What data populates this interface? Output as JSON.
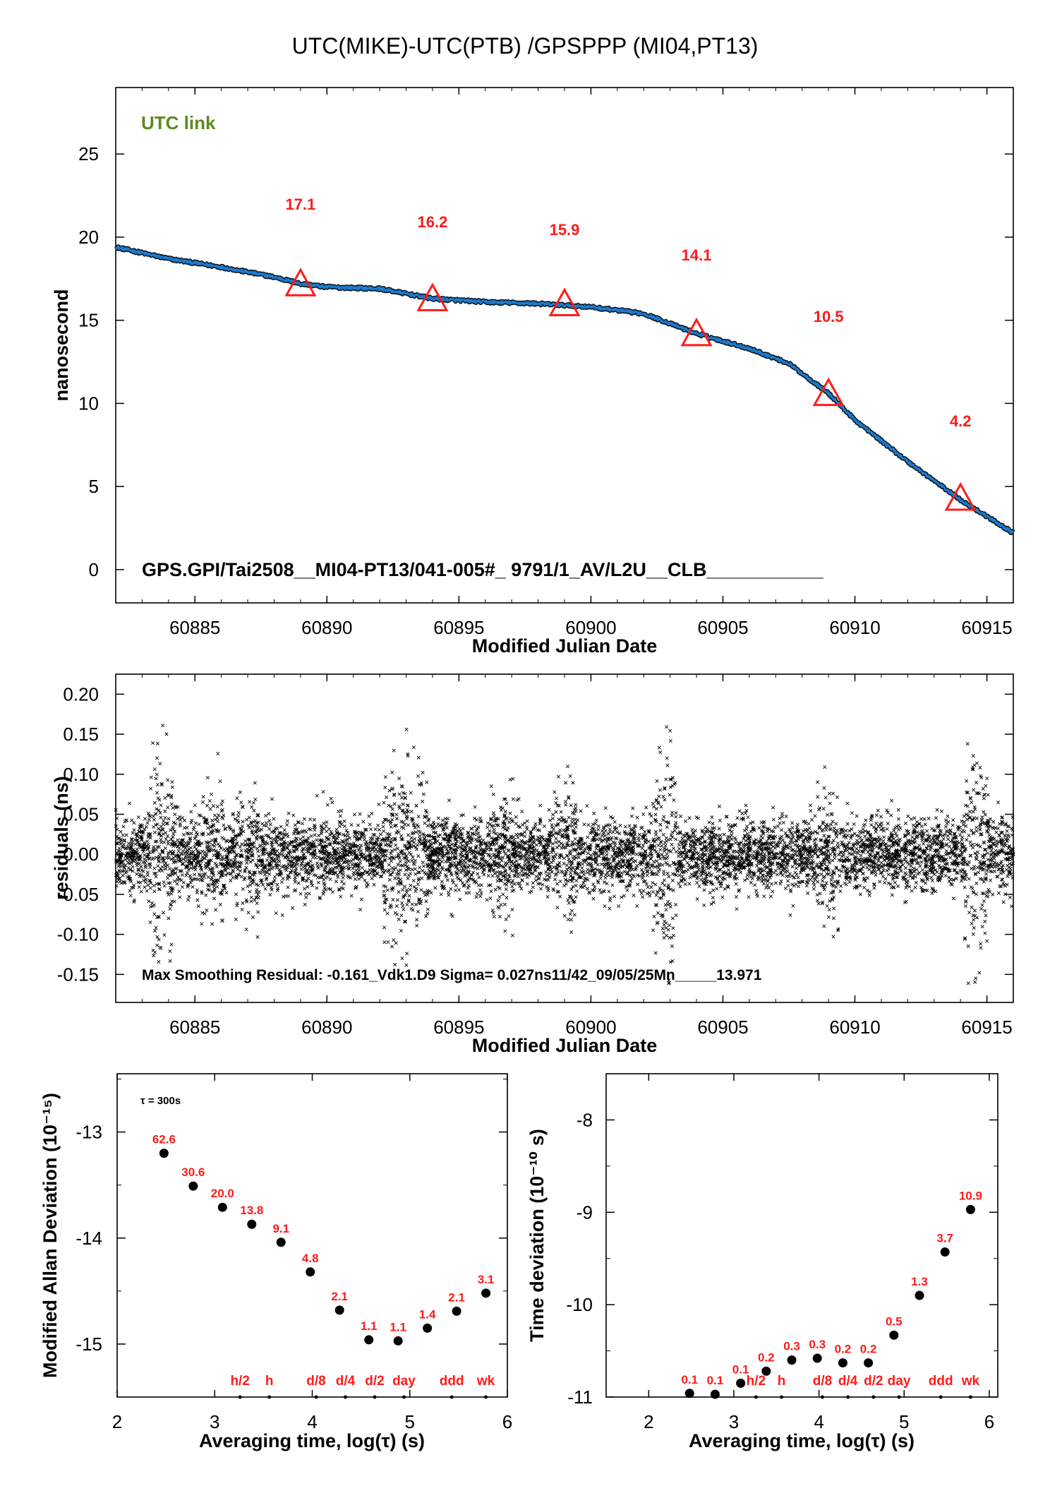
{
  "title": "UTC(MIKE)-UTC(PTB)  /GPSPPP  (MI04,PT13)",
  "colors": {
    "line": "#1f7ac9",
    "markers": "#ff1a1a",
    "link_label": "#5e8a1e"
  },
  "chart_data": [
    {
      "id": "time_series",
      "type": "line",
      "xlabel": "Modified Julian Date",
      "ylabel": "nanosecond",
      "xlim": [
        60882,
        60916
      ],
      "ylim": [
        -2,
        29
      ],
      "xticks": [
        60885,
        60890,
        60895,
        60900,
        60905,
        60910,
        60915
      ],
      "yticks": [
        0,
        5,
        10,
        15,
        20,
        25
      ],
      "corner_label": "UTC link",
      "info_text": "GPS.GPI/Tai2508__MI04-PT13/041-005#_  9791/1_AV/L2U__CLB___________",
      "series": [
        {
          "x": [
            60882,
            60884,
            60886,
            60888,
            60889,
            60890,
            60892,
            60894,
            60896,
            60898,
            60900,
            60902,
            60904,
            60906,
            60907.5,
            60909,
            60910,
            60912,
            60914,
            60916
          ],
          "y": [
            19.4,
            18.7,
            18.2,
            17.6,
            17.2,
            17.0,
            16.9,
            16.3,
            16.1,
            16.0,
            15.8,
            15.4,
            14.2,
            13.3,
            12.4,
            10.6,
            9.0,
            6.5,
            4.2,
            2.2
          ]
        }
      ],
      "markers": [
        {
          "x": 60889,
          "y": 17.1,
          "label": "17.1"
        },
        {
          "x": 60894,
          "y": 16.2,
          "label": "16.2"
        },
        {
          "x": 60899,
          "y": 15.9,
          "label": "15.9"
        },
        {
          "x": 60904,
          "y": 14.1,
          "label": "14.1"
        },
        {
          "x": 60909,
          "y": 10.5,
          "label": "10.5"
        },
        {
          "x": 60914,
          "y": 4.2,
          "label": "4.2"
        }
      ]
    },
    {
      "id": "residuals",
      "type": "scatter",
      "xlabel": "Modified Julian Date",
      "ylabel": "residuals (ns)",
      "xlim": [
        60882,
        60916
      ],
      "ylim": [
        -0.185,
        0.225
      ],
      "xticks": [
        60885,
        60890,
        60895,
        60900,
        60905,
        60910,
        60915
      ],
      "yticks": [
        "0.20",
        "0.15",
        "0.10",
        "0.05",
        "0.00",
        "-0.05",
        "-0.10",
        "-0.15"
      ],
      "info_text": "Max Smoothing Residual: -0.161_Vdk1.D9  Sigma= 0.027ns11/42_09/05/25Mn_____13.971",
      "sigma": 0.027,
      "max_abs_residual": 0.161
    },
    {
      "id": "mdev",
      "type": "scatter",
      "xlabel": "Averaging time, log(τ) (s)",
      "ylabel": "Modified Allan Deviation (10⁻¹⁵)",
      "xlim": [
        2,
        6
      ],
      "ylim": [
        -15.5,
        -12.45
      ],
      "xticks": [
        2,
        3,
        4,
        5,
        6
      ],
      "yticks": [
        -13,
        -14,
        -15
      ],
      "tau_note": "τ = 300s",
      "points": [
        {
          "x": 2.48,
          "y": -13.2,
          "label": "62.6"
        },
        {
          "x": 2.78,
          "y": -13.51,
          "label": "30.6"
        },
        {
          "x": 3.08,
          "y": -13.71,
          "label": "20.0"
        },
        {
          "x": 3.38,
          "y": -13.87,
          "label": "13.8"
        },
        {
          "x": 3.68,
          "y": -14.04,
          "label": "9.1"
        },
        {
          "x": 3.98,
          "y": -14.32,
          "label": "4.8"
        },
        {
          "x": 4.28,
          "y": -14.68,
          "label": "2.1"
        },
        {
          "x": 4.58,
          "y": -14.96,
          "label": "1.1"
        },
        {
          "x": 4.88,
          "y": -14.97,
          "label": "1.1"
        },
        {
          "x": 5.18,
          "y": -14.85,
          "label": "1.4"
        },
        {
          "x": 5.48,
          "y": -14.69,
          "label": "2.1"
        },
        {
          "x": 5.78,
          "y": -14.52,
          "label": "3.1"
        }
      ],
      "time_marks": [
        {
          "x": 3.26,
          "label": "h/2"
        },
        {
          "x": 3.56,
          "label": "h"
        },
        {
          "x": 4.04,
          "label": "d/8"
        },
        {
          "x": 4.34,
          "label": "d/4"
        },
        {
          "x": 4.64,
          "label": "d/2"
        },
        {
          "x": 4.94,
          "label": "day"
        },
        {
          "x": 5.43,
          "label": "ddd"
        },
        {
          "x": 5.78,
          "label": "wk"
        }
      ]
    },
    {
      "id": "tdev",
      "type": "scatter",
      "xlabel": "Averaging time, log(τ) (s)",
      "ylabel": "Time deviation (10⁻¹⁰ s)",
      "xlim": [
        1.5,
        6.1
      ],
      "ylim": [
        -11,
        -7.5
      ],
      "xticks": [
        2,
        3,
        4,
        5,
        6
      ],
      "yticks": [
        -8,
        -9,
        -10,
        -11
      ],
      "points": [
        {
          "x": 2.48,
          "y": -10.96,
          "label": "0.1"
        },
        {
          "x": 2.78,
          "y": -10.97,
          "label": "0.1"
        },
        {
          "x": 3.08,
          "y": -10.85,
          "label": "0.1"
        },
        {
          "x": 3.38,
          "y": -10.72,
          "label": "0.2"
        },
        {
          "x": 3.68,
          "y": -10.6,
          "label": "0.3"
        },
        {
          "x": 3.98,
          "y": -10.58,
          "label": "0.3"
        },
        {
          "x": 4.28,
          "y": -10.63,
          "label": "0.2"
        },
        {
          "x": 4.58,
          "y": -10.63,
          "label": "0.2"
        },
        {
          "x": 4.88,
          "y": -10.33,
          "label": "0.5"
        },
        {
          "x": 5.18,
          "y": -9.9,
          "label": "1.3"
        },
        {
          "x": 5.48,
          "y": -9.43,
          "label": "3.7"
        },
        {
          "x": 5.78,
          "y": -8.97,
          "label": "10.9"
        }
      ],
      "time_marks": [
        {
          "x": 3.26,
          "label": "h/2"
        },
        {
          "x": 3.56,
          "label": "h"
        },
        {
          "x": 4.04,
          "label": "d/8"
        },
        {
          "x": 4.34,
          "label": "d/4"
        },
        {
          "x": 4.64,
          "label": "d/2"
        },
        {
          "x": 4.94,
          "label": "day"
        },
        {
          "x": 5.43,
          "label": "ddd"
        },
        {
          "x": 5.78,
          "label": "wk"
        }
      ]
    }
  ]
}
